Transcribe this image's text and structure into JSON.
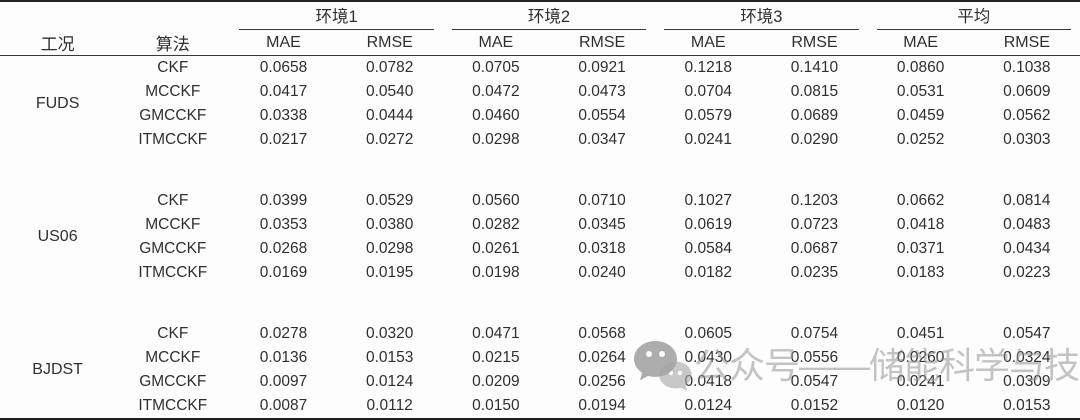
{
  "table": {
    "header": {
      "condition": "工况",
      "algorithm": "算法",
      "metrics": [
        "MAE",
        "RMSE"
      ]
    },
    "col_groups": [
      {
        "label": "环境1"
      },
      {
        "label": "环境2"
      },
      {
        "label": "环境3"
      },
      {
        "label": "平均"
      }
    ],
    "blocks": [
      {
        "condition": "FUDS",
        "rows": [
          {
            "algorithm": "CKF",
            "values": [
              "0.0658",
              "0.0782",
              "0.0705",
              "0.0921",
              "0.1218",
              "0.1410",
              "0.0860",
              "0.1038"
            ]
          },
          {
            "algorithm": "MCCKF",
            "values": [
              "0.0417",
              "0.0540",
              "0.0472",
              "0.0473",
              "0.0704",
              "0.0815",
              "0.0531",
              "0.0609"
            ]
          },
          {
            "algorithm": "GMCCKF",
            "values": [
              "0.0338",
              "0.0444",
              "0.0460",
              "0.0554",
              "0.0579",
              "0.0689",
              "0.0459",
              "0.0562"
            ]
          },
          {
            "algorithm": "ITMCCKF",
            "values": [
              "0.0217",
              "0.0272",
              "0.0298",
              "0.0347",
              "0.0241",
              "0.0290",
              "0.0252",
              "0.0303"
            ]
          }
        ]
      },
      {
        "condition": "US06",
        "rows": [
          {
            "algorithm": "CKF",
            "values": [
              "0.0399",
              "0.0529",
              "0.0560",
              "0.0710",
              "0.1027",
              "0.1203",
              "0.0662",
              "0.0814"
            ]
          },
          {
            "algorithm": "MCCKF",
            "values": [
              "0.0353",
              "0.0380",
              "0.0282",
              "0.0345",
              "0.0619",
              "0.0723",
              "0.0418",
              "0.0483"
            ]
          },
          {
            "algorithm": "GMCCKF",
            "values": [
              "0.0268",
              "0.0298",
              "0.0261",
              "0.0318",
              "0.0584",
              "0.0687",
              "0.0371",
              "0.0434"
            ]
          },
          {
            "algorithm": "ITMCCKF",
            "values": [
              "0.0169",
              "0.0195",
              "0.0198",
              "0.0240",
              "0.0182",
              "0.0235",
              "0.0183",
              "0.0223"
            ]
          }
        ]
      },
      {
        "condition": "BJDST",
        "rows": [
          {
            "algorithm": "CKF",
            "values": [
              "0.0278",
              "0.0320",
              "0.0471",
              "0.0568",
              "0.0605",
              "0.0754",
              "0.0451",
              "0.0547"
            ]
          },
          {
            "algorithm": "MCCKF",
            "values": [
              "0.0136",
              "0.0153",
              "0.0215",
              "0.0264",
              "0.0430",
              "0.0556",
              "0.0260",
              "0.0324"
            ]
          },
          {
            "algorithm": "GMCCKF",
            "values": [
              "0.0097",
              "0.0124",
              "0.0209",
              "0.0256",
              "0.0418",
              "0.0547",
              "0.0241",
              "0.0309"
            ]
          },
          {
            "algorithm": "ITMCCKF",
            "values": [
              "0.0087",
              "0.0112",
              "0.0150",
              "0.0194",
              "0.0124",
              "0.0152",
              "0.0120",
              "0.0153"
            ]
          }
        ]
      }
    ]
  },
  "watermark": {
    "icon": "wechat-icon",
    "text": "公众号——储能科学与技术",
    "color": "#949494"
  },
  "colors": {
    "text": "#2f2f2f",
    "rule": "#2a2a2a",
    "background": "#fdfdfd"
  }
}
